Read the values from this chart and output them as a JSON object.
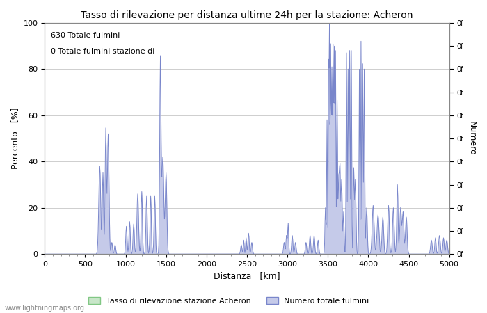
{
  "title": "Tasso di rilevazione per distanza ultime 24h per la stazione: Acheron",
  "xlabel": "Distanza   [km]",
  "ylabel_left": "Percento   [%]",
  "ylabel_right": "Numero",
  "annotation_line1": "630 Totale fulmini",
  "annotation_line2": "0 Totale fulmini stazione di",
  "xlim": [
    0,
    5000
  ],
  "ylim_left": [
    0,
    100
  ],
  "xticks": [
    0,
    500,
    1000,
    1500,
    2000,
    2500,
    3000,
    3500,
    4000,
    4500,
    5000
  ],
  "yticks_left": [
    0,
    20,
    40,
    60,
    80,
    100
  ],
  "yticks_right_labels": [
    "0f",
    "0f",
    "0f",
    "0f",
    "0f",
    "0f",
    "0f",
    "0f",
    "0f",
    "0f",
    "0f",
    "0f",
    "0f"
  ],
  "legend_label_green": "Tasso di rilevazione stazione Acheron",
  "legend_label_blue": "Numero totale fulmini",
  "watermark": "www.lightningmaps.org",
  "color_green_fill": "#c8e6c9",
  "color_green_line": "#81c784",
  "color_blue_fill": "#c5cae9",
  "color_blue_line": "#7986cb",
  "background_color": "#ffffff",
  "grid_color": "#aaaaaa"
}
